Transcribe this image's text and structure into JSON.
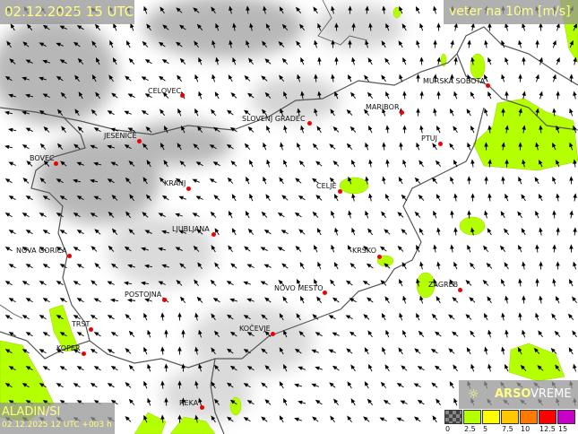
{
  "header": {
    "datetime": "02.12.2025 15 UTC",
    "variable": "veter na 10m [m/s]"
  },
  "model": {
    "name": "ALADIN/SI",
    "run": "02.12.2025 12 UTC +003 h"
  },
  "brand": {
    "logo_icon": "sun-icon",
    "name_bold": "ARSO",
    "name_light": "VREME"
  },
  "legend": {
    "ticks": [
      "0",
      "2.5",
      "5",
      "7.5",
      "10",
      "12.5",
      "15"
    ],
    "colors": [
      "#555555",
      "#b4ff00",
      "#ffff00",
      "#ffc800",
      "#ff7800",
      "#ff0000",
      "#c800c8"
    ]
  },
  "cities": [
    {
      "name": "CELOVEC"
    },
    {
      "name": "SLOVENJ GRADEC"
    },
    {
      "name": "MURSKA SOBOTA"
    },
    {
      "name": "MARIBOR"
    },
    {
      "name": "PTUJ"
    },
    {
      "name": "JESENICE"
    },
    {
      "name": "BOVEC"
    },
    {
      "name": "KRANJ"
    },
    {
      "name": "CELJE"
    },
    {
      "name": "LJUBLJANA"
    },
    {
      "name": "NOVA GORICA"
    },
    {
      "name": "KRŠKO"
    },
    {
      "name": "NOVO MESTO"
    },
    {
      "name": "ZAGREB"
    },
    {
      "name": "POSTOJNA"
    },
    {
      "name": "TRST"
    },
    {
      "name": "KOPER"
    },
    {
      "name": "KOČEVJE"
    },
    {
      "name": "REKA"
    }
  ],
  "colors": {
    "wind_low": "#b4ff00",
    "city_dot": "#e00000",
    "terrain": "#9a9a9a"
  }
}
